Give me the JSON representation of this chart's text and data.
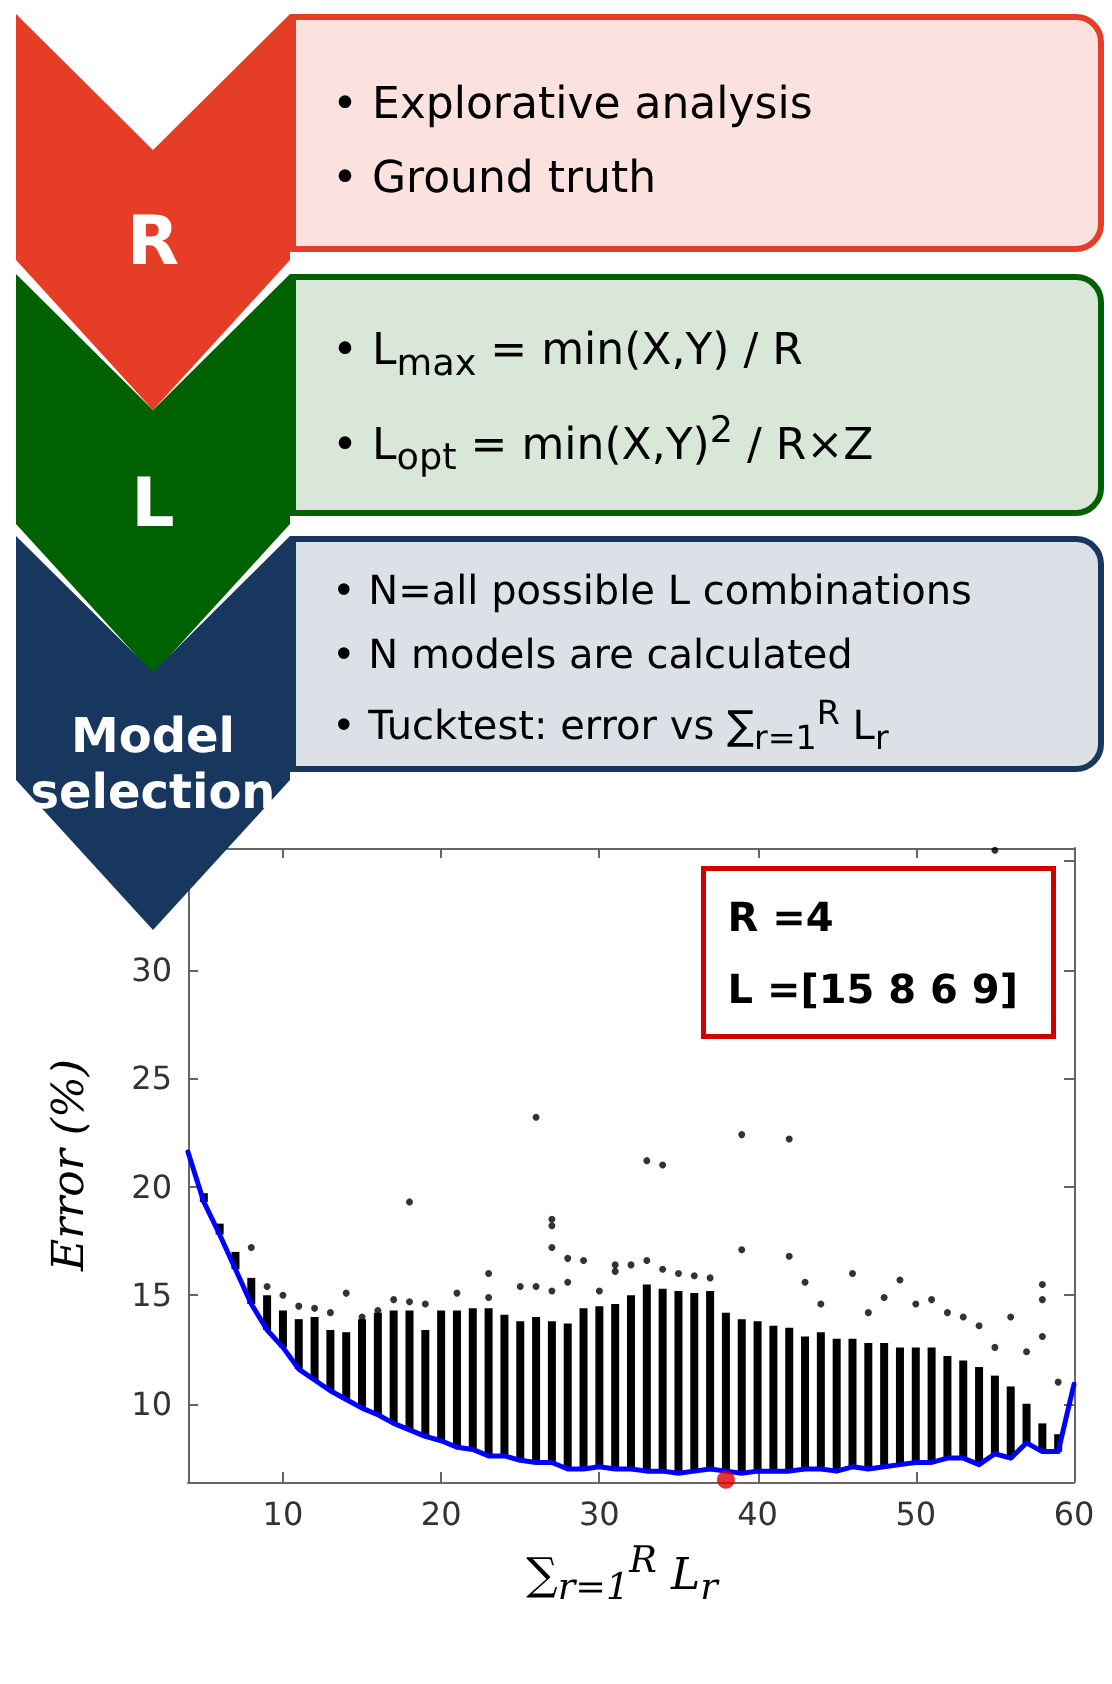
{
  "chart_data": [
    {
      "type": "other",
      "title": "R",
      "color": "#e53d26",
      "annotations": [
        "• Explorative analysis",
        "• Ground truth"
      ]
    },
    {
      "type": "other",
      "title": "L",
      "color": "#006100",
      "annotations": [
        "• L$_{max}$ = min(X,Y) / R",
        "• L$_{opt}$ = min(X,Y)$^{2}$ / R×Z"
      ]
    },
    {
      "type": "other",
      "title": "Model selection",
      "color": "#17375e",
      "annotations": [
        "• N=all possible L combinations",
        "• N models are calculated",
        "• Tucktest: error vs ∑$_{r=1}$$^{R}$ L$_{r}$"
      ]
    },
    {
      "type": "scatter",
      "xlabel": "∑$_{r=1}$$^{R}$ L$_{r}$",
      "ylabel": "Error (%)",
      "xlim": [
        4,
        60
      ],
      "ylim": [
        6.4,
        35.6
      ],
      "xticks": [
        10,
        20,
        30,
        40,
        50,
        60
      ],
      "yticks": [
        10,
        15,
        20,
        25,
        30,
        {
          "value": 35,
          "label": null
        }
      ],
      "grid": false,
      "annotations": [
        "R =4",
        "L =[15 8 6 9]"
      ],
      "x": [
        4,
        5,
        6,
        7,
        8,
        9,
        10,
        11,
        12,
        13,
        14,
        15,
        16,
        17,
        18,
        19,
        20,
        21,
        22,
        23,
        24,
        25,
        26,
        27,
        28,
        29,
        30,
        31,
        32,
        33,
        34,
        35,
        36,
        37,
        38,
        39,
        40,
        41,
        42,
        43,
        44,
        45,
        46,
        47,
        48,
        49,
        50,
        51,
        52,
        53,
        54,
        55,
        56,
        57,
        58,
        59,
        60
      ],
      "series": [
        {
          "type": "bar",
          "color": "#000000",
          "base": [
            null,
            19.3,
            17.8,
            16.2,
            14.6,
            13.4,
            12.6,
            11.6,
            11.1,
            10.6,
            10.2,
            9.8,
            9.5,
            9.1,
            8.8,
            8.5,
            8.3,
            8.0,
            7.9,
            7.6,
            7.6,
            7.4,
            7.3,
            7.3,
            7.0,
            7.0,
            7.1,
            7.0,
            7.0,
            6.9,
            6.9,
            6.8,
            6.9,
            7.0,
            6.9,
            6.8,
            6.9,
            6.9,
            6.9,
            7.0,
            7.0,
            6.9,
            7.1,
            7.0,
            7.1,
            7.2,
            7.3,
            7.3,
            7.5,
            7.5,
            7.2,
            7.7,
            7.5,
            8.2,
            7.8,
            7.8,
            null
          ],
          "values": [
            null,
            0.4,
            0.5,
            0.8,
            1.2,
            1.6,
            1.7,
            2.3,
            2.9,
            2.8,
            3.1,
            4.1,
            4.7,
            5.2,
            5.5,
            4.9,
            6.0,
            6.3,
            6.5,
            6.8,
            6.5,
            6.4,
            6.7,
            6.5,
            6.7,
            7.4,
            7.4,
            7.6,
            8.0,
            8.6,
            8.4,
            8.4,
            8.2,
            8.2,
            7.3,
            7.1,
            6.9,
            6.7,
            6.6,
            6.1,
            6.3,
            6.1,
            5.9,
            5.8,
            5.7,
            5.4,
            5.3,
            5.3,
            4.7,
            4.5,
            4.5,
            3.6,
            3.3,
            1.8,
            1.3,
            0.8,
            null
          ]
        },
        {
          "type": "scatter",
          "color": "#000000",
          "marker": "circle",
          "x": [
            8,
            9,
            10,
            11,
            12,
            13,
            14,
            15,
            16,
            17,
            18,
            18,
            19,
            21,
            23,
            23,
            25,
            26,
            26,
            27,
            27,
            27,
            27,
            28,
            28,
            29,
            30,
            31,
            31,
            32,
            33,
            33,
            34,
            34,
            35,
            36,
            37,
            39,
            39,
            42,
            42,
            43,
            44,
            46,
            47,
            48,
            49,
            50,
            51,
            52,
            53,
            54,
            55,
            55,
            56,
            57,
            58,
            58,
            58,
            59
          ],
          "values": [
            17.2,
            15.4,
            15.0,
            14.5,
            14.4,
            14.2,
            15.1,
            14.0,
            14.3,
            14.8,
            19.3,
            14.7,
            14.6,
            15.1,
            16.0,
            14.9,
            15.4,
            23.2,
            15.4,
            18.5,
            18.2,
            17.2,
            15.2,
            16.7,
            15.6,
            16.6,
            15.2,
            16.4,
            16.1,
            16.4,
            16.6,
            21.2,
            21.0,
            16.2,
            16.0,
            15.9,
            15.8,
            22.4,
            17.1,
            22.2,
            16.8,
            15.6,
            14.6,
            16.0,
            14.2,
            14.9,
            15.7,
            14.6,
            14.8,
            14.2,
            14.0,
            13.6,
            35.5,
            12.6,
            14.0,
            12.4,
            15.5,
            14.8,
            13.1,
            11.0
          ]
        },
        {
          "type": "line",
          "color": "#0000ff",
          "marker": "none",
          "line_style": "solid",
          "values": [
            21.6,
            19.3,
            17.8,
            16.2,
            14.6,
            13.4,
            12.6,
            11.6,
            11.1,
            10.6,
            10.2,
            9.8,
            9.5,
            9.1,
            8.8,
            8.5,
            8.3,
            8.0,
            7.9,
            7.6,
            7.6,
            7.4,
            7.3,
            7.3,
            7.0,
            7.0,
            7.1,
            7.0,
            7.0,
            6.9,
            6.9,
            6.8,
            6.9,
            7.0,
            6.9,
            6.8,
            6.9,
            6.9,
            6.9,
            7.0,
            7.0,
            6.9,
            7.1,
            7.0,
            7.1,
            7.2,
            7.3,
            7.3,
            7.5,
            7.5,
            7.2,
            7.7,
            7.5,
            8.2,
            7.8,
            7.8,
            10.9
          ]
        },
        {
          "type": "scatter",
          "color": "#e00000",
          "marker": "circle",
          "x": [
            38
          ],
          "values": [
            6.5
          ]
        }
      ]
    }
  ]
}
